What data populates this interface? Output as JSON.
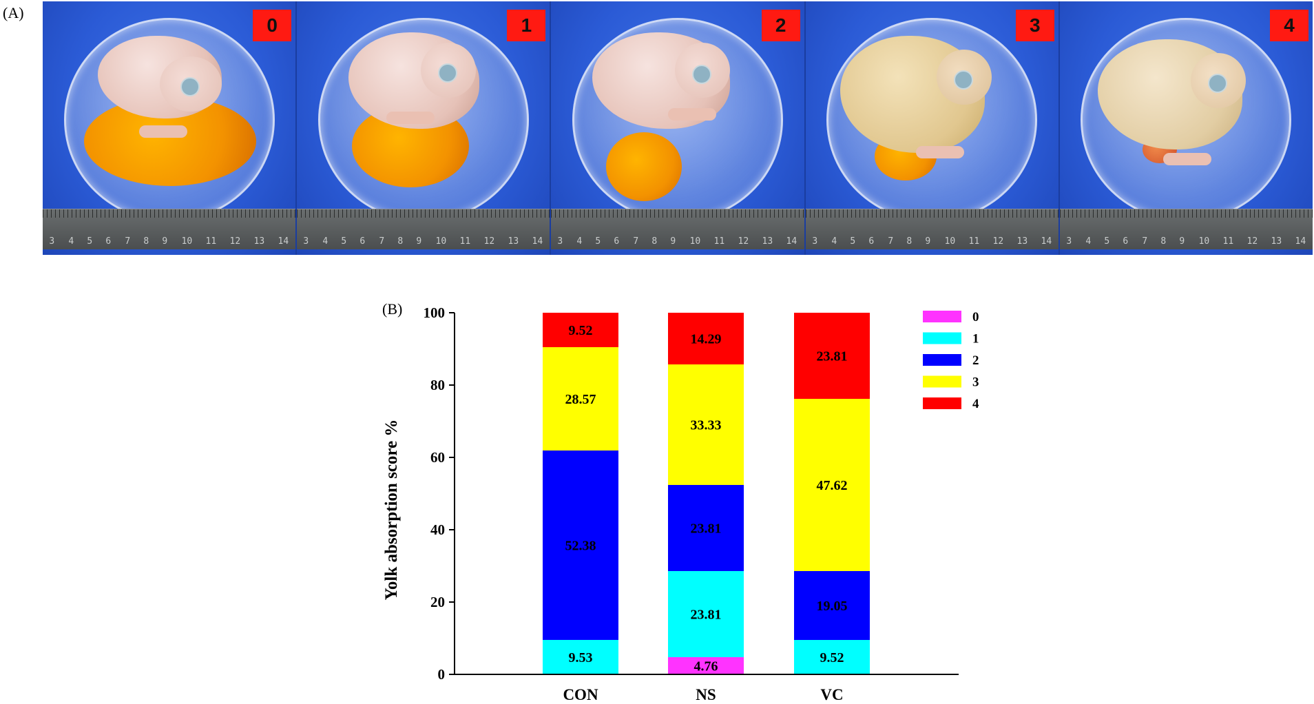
{
  "panel_a": {
    "label": "(A)",
    "photos": [
      {
        "score": "0",
        "ruler_numbers": [
          "14",
          "13",
          "12",
          "11",
          "10",
          "9",
          "8",
          "7",
          "6",
          "5",
          "4",
          "3"
        ]
      },
      {
        "score": "1",
        "ruler_numbers": [
          "14",
          "13",
          "12",
          "11",
          "10",
          "9",
          "8",
          "7",
          "6",
          "5",
          "4",
          "3"
        ]
      },
      {
        "score": "2",
        "ruler_numbers": [
          "14",
          "13",
          "12",
          "11",
          "10",
          "9",
          "8",
          "7",
          "6",
          "5",
          "4",
          "3"
        ]
      },
      {
        "score": "3",
        "ruler_numbers": [
          "14",
          "13",
          "12",
          "11",
          "10",
          "9",
          "8",
          "7",
          "6",
          "5",
          "4",
          "3"
        ]
      },
      {
        "score": "4",
        "ruler_numbers": [
          "14",
          "13",
          "12",
          "11",
          "10",
          "9",
          "8",
          "7",
          "6",
          "5",
          "4",
          "3"
        ]
      }
    ]
  },
  "panel_b": {
    "label": "(B)"
  },
  "chart_data": {
    "type": "bar",
    "stacked": true,
    "title": "",
    "xlabel": "",
    "ylabel": "Yolk absorption score %",
    "ylim": [
      0,
      100
    ],
    "yticks": [
      0,
      20,
      40,
      60,
      80,
      100
    ],
    "categories": [
      "CON",
      "NS",
      "VC"
    ],
    "legend_position": "right",
    "series": [
      {
        "name": "0",
        "color": "#ff33ff",
        "values": [
          0,
          4.76,
          0
        ],
        "labels": [
          "",
          "4.76",
          ""
        ]
      },
      {
        "name": "1",
        "color": "#00ffff",
        "values": [
          9.53,
          23.81,
          9.52
        ],
        "labels": [
          "9.53",
          "23.81",
          "9.52"
        ]
      },
      {
        "name": "2",
        "color": "#0000ff",
        "values": [
          52.38,
          23.81,
          19.05
        ],
        "labels": [
          "52.38",
          "23.81",
          "19.05"
        ]
      },
      {
        "name": "3",
        "color": "#ffff00",
        "values": [
          28.57,
          33.33,
          47.62
        ],
        "labels": [
          "28.57",
          "33.33",
          "47.62"
        ]
      },
      {
        "name": "4",
        "color": "#ff0000",
        "values": [
          9.52,
          14.29,
          23.81
        ],
        "labels": [
          "9.52",
          "14.29",
          "23.81"
        ]
      }
    ]
  }
}
